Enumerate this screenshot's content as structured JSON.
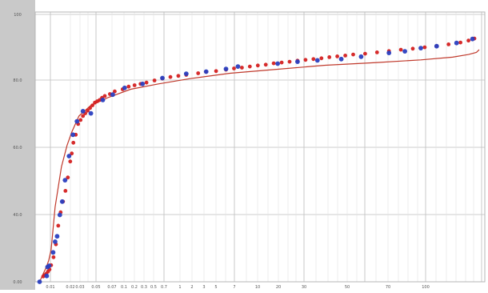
{
  "chart_data": {
    "type": "scatter",
    "title": "",
    "xlabel": "",
    "ylabel": "",
    "x_scale": "log",
    "grid": true,
    "legend": "none",
    "y_tick_labels": [
      "100",
      "80.0",
      "60.0",
      "40.0",
      "0.00"
    ],
    "x_tick_labels": [
      "0.01",
      "0.02",
      "0.03",
      "0.05",
      "0.07",
      "0.1",
      "0.2",
      "0.3",
      "0.5",
      "0.7",
      "1",
      "2",
      "3",
      "5",
      "7",
      "10",
      "20",
      "30",
      "50",
      "70",
      "100"
    ],
    "colors": {
      "background": "#ffffff",
      "axis_strip": "#c9c9c9",
      "red_series": "#d42020",
      "blue_series": "#2a3fc0",
      "fit_line": "#c0392b"
    },
    "fit_curve": {
      "name": "",
      "color": "#c0392b",
      "points": [
        [
          1.0,
          0.0
        ],
        [
          10,
          3
        ],
        [
          18,
          5.5
        ],
        [
          24,
          8
        ],
        [
          30,
          12
        ],
        [
          40,
          28
        ],
        [
          56,
          43
        ],
        [
          70,
          51
        ],
        [
          82,
          56
        ],
        [
          100,
          62
        ],
        [
          130,
          66
        ],
        [
          175,
          69
        ],
        [
          230,
          72
        ],
        [
          300,
          74
        ],
        [
          380,
          76
        ],
        [
          480,
          78
        ],
        [
          600,
          79.5
        ],
        [
          720,
          81
        ],
        [
          850,
          82
        ],
        [
          960,
          83
        ],
        [
          1040,
          84
        ],
        [
          1080,
          85
        ],
        [
          1100,
          85.8
        ],
        [
          1107,
          86.8
        ]
      ]
    },
    "series": [
      {
        "name": "",
        "color": "#d42020",
        "points": [
          [
            10,
            2
          ],
          [
            14,
            2.5
          ],
          [
            18,
            3
          ],
          [
            22,
            3.8
          ],
          [
            26,
            4.6
          ],
          [
            30,
            6.2
          ],
          [
            36,
            9.2
          ],
          [
            42,
            14
          ],
          [
            48,
            21
          ],
          [
            54,
            26
          ],
          [
            60,
            30
          ],
          [
            66,
            34
          ],
          [
            72,
            39
          ],
          [
            78,
            45
          ],
          [
            82,
            48
          ],
          [
            86,
            52
          ],
          [
            92,
            55
          ],
          [
            98,
            59
          ],
          [
            104,
            60.5
          ],
          [
            110,
            62
          ],
          [
            116,
            63
          ],
          [
            122,
            64
          ],
          [
            128,
            65
          ],
          [
            134,
            66
          ],
          [
            140,
            67
          ],
          [
            146,
            67.5
          ],
          [
            152,
            68
          ],
          [
            158,
            68.8
          ],
          [
            165,
            69.5
          ],
          [
            178,
            70.2
          ],
          [
            190,
            71.2
          ],
          [
            210,
            72
          ],
          [
            225,
            73
          ],
          [
            240,
            73.5
          ],
          [
            255,
            74
          ],
          [
            270,
            74.5
          ],
          [
            290,
            75.3
          ],
          [
            310,
            76
          ],
          [
            330,
            76.6
          ],
          [
            350,
            77
          ],
          [
            370,
            77.4
          ],
          [
            400,
            78
          ],
          [
            420,
            78.5
          ],
          [
            445,
            78.8
          ],
          [
            470,
            79.3
          ],
          [
            490,
            79.8
          ],
          [
            510,
            80.1
          ],
          [
            530,
            80.5
          ],
          [
            550,
            80.9
          ],
          [
            570,
            81.2
          ],
          [
            590,
            81.7
          ],
          [
            610,
            82
          ],
          [
            630,
            82.3
          ],
          [
            650,
            82.7
          ],
          [
            670,
            83
          ],
          [
            690,
            83.3
          ],
          [
            710,
            83.6
          ],
          [
            730,
            84
          ],
          [
            750,
            84.3
          ],
          [
            770,
            84.6
          ],
          [
            790,
            85
          ],
          [
            820,
            85.3
          ],
          [
            850,
            85.8
          ],
          [
            880,
            86.3
          ],
          [
            910,
            86.8
          ],
          [
            940,
            87.2
          ],
          [
            970,
            87.7
          ],
          [
            1000,
            88.2
          ],
          [
            1030,
            88.8
          ],
          [
            1060,
            89.5
          ],
          [
            1080,
            90.2
          ],
          [
            1095,
            91
          ]
        ]
      },
      {
        "name": "",
        "color": "#2a3fc0",
        "points": [
          [
            1.0,
            0.0
          ],
          [
            19,
            2.2
          ],
          [
            21,
            5.5
          ],
          [
            25,
            6
          ],
          [
            35,
            11
          ],
          [
            40,
            15
          ],
          [
            45,
            17
          ],
          [
            52,
            25
          ],
          [
            58,
            30
          ],
          [
            65,
            38
          ],
          [
            75,
            47
          ],
          [
            85,
            55
          ],
          [
            95,
            60
          ],
          [
            110,
            63.8
          ],
          [
            130,
            63
          ],
          [
            160,
            68
          ],
          [
            185,
            70
          ],
          [
            215,
            72.5
          ],
          [
            260,
            74
          ],
          [
            310,
            76.2
          ],
          [
            370,
            77.8
          ],
          [
            420,
            78.6
          ],
          [
            470,
            79.6
          ],
          [
            500,
            80.5
          ],
          [
            600,
            81.6
          ],
          [
            650,
            82.3
          ],
          [
            700,
            82.8
          ],
          [
            760,
            83.3
          ],
          [
            810,
            84.2
          ],
          [
            880,
            85.6
          ],
          [
            920,
            86.2
          ],
          [
            960,
            87.4
          ],
          [
            1000,
            88.1
          ],
          [
            1050,
            89.3
          ],
          [
            1090,
            90.8
          ]
        ]
      }
    ]
  }
}
